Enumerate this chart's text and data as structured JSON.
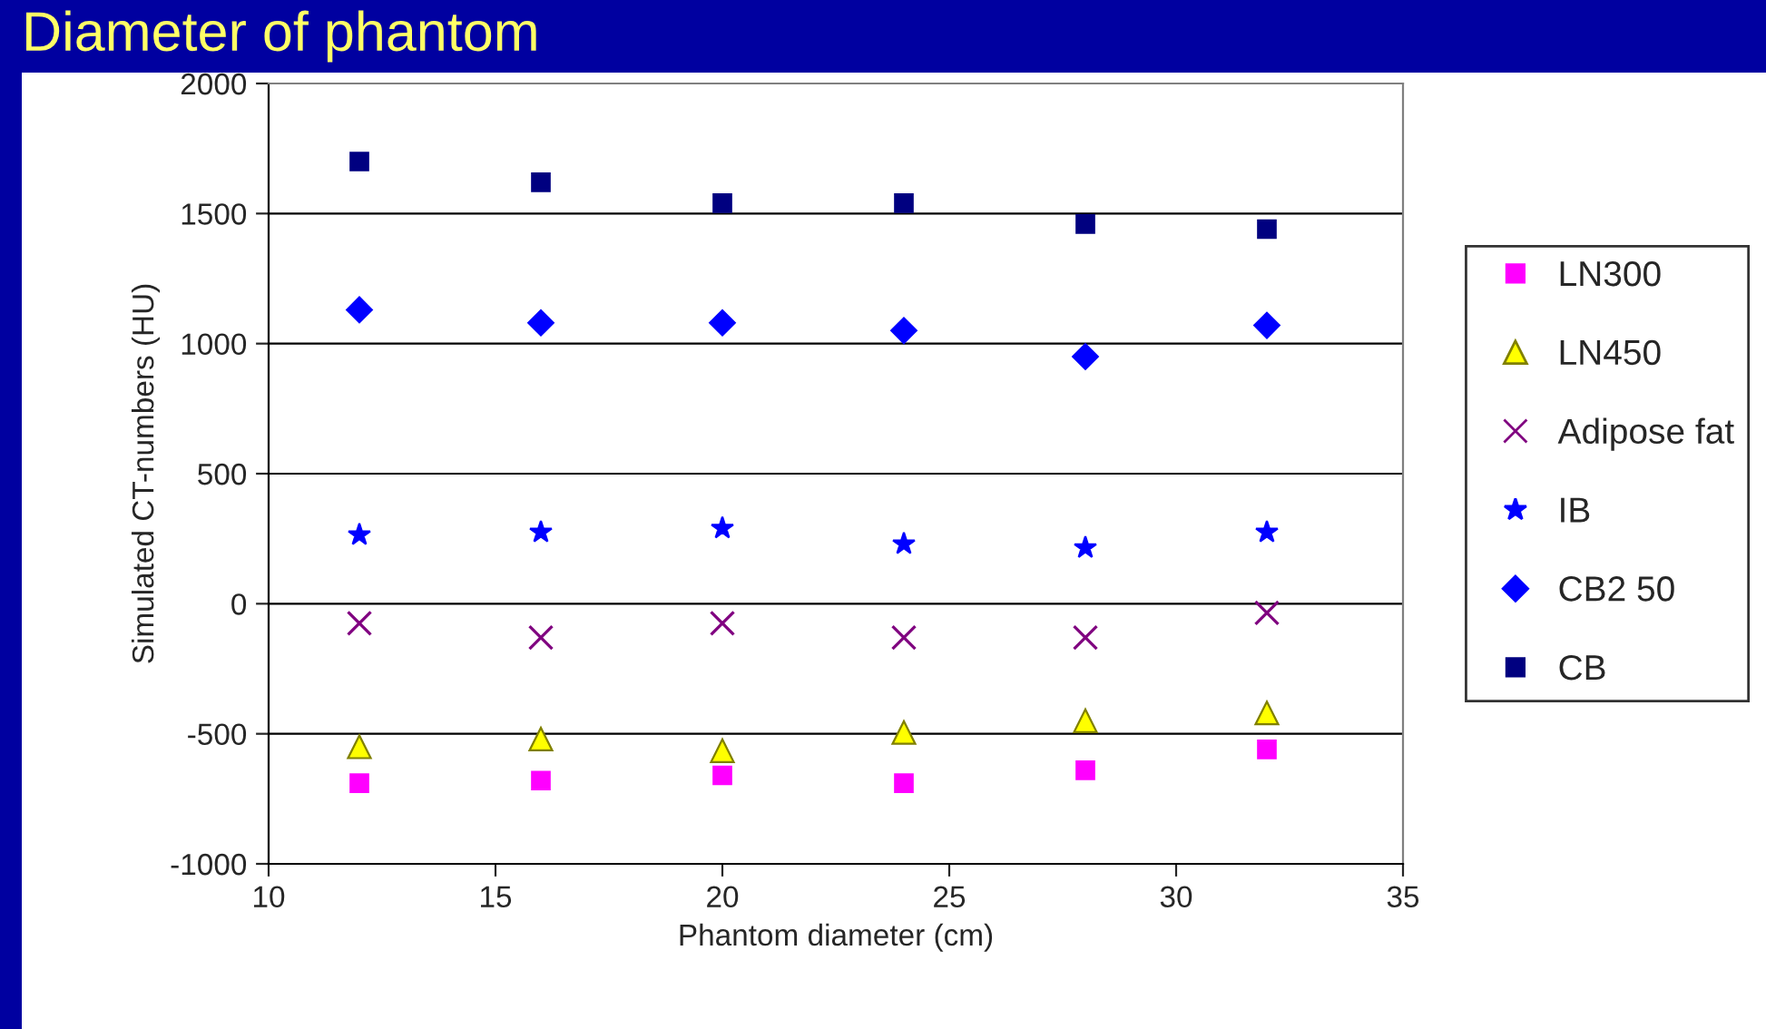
{
  "chart_data": {
    "type": "scatter",
    "title": "Diameter of phantom",
    "xlabel": "Phantom diameter (cm)",
    "ylabel": "Simulated CT-numbers (HU)",
    "x": [
      12,
      16,
      20,
      24,
      28,
      32
    ],
    "series": [
      {
        "name": "LN300",
        "color": "#ff00ff",
        "marker": "square",
        "values": [
          -690,
          -680,
          -660,
          -690,
          -640,
          -560
        ]
      },
      {
        "name": "LN450",
        "color": "#ffff00",
        "marker": "triangle",
        "values": [
          -550,
          -520,
          -565,
          -495,
          -450,
          -420
        ]
      },
      {
        "name": "Adipose fat",
        "color": "#800080",
        "marker": "cross",
        "values": [
          -75,
          -130,
          -75,
          -130,
          -130,
          -35
        ]
      },
      {
        "name": "IB",
        "color": "#0000ff",
        "marker": "star",
        "values": [
          265,
          275,
          290,
          230,
          215,
          275
        ]
      },
      {
        "name": "CB2 50",
        "color": "#0000ff",
        "marker": "diamond",
        "values": [
          1130,
          1080,
          1080,
          1050,
          950,
          1070
        ]
      },
      {
        "name": "CB",
        "color": "#000080",
        "marker": "square",
        "values": [
          1700,
          1620,
          1540,
          1540,
          1460,
          1440
        ]
      }
    ],
    "xlim": [
      10,
      35
    ],
    "xticks": [
      10,
      15,
      20,
      25,
      30,
      35
    ],
    "ylim": [
      -1000,
      2000
    ],
    "yticks": [
      -1000,
      -500,
      0,
      500,
      1000,
      1500,
      2000
    ],
    "grid": "y",
    "legend": "right"
  }
}
